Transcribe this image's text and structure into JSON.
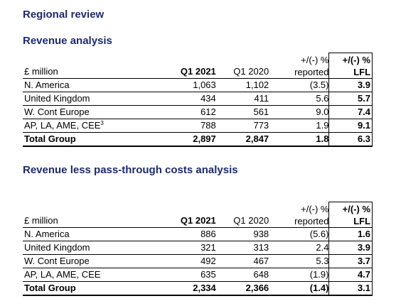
{
  "title": "Regional review",
  "sections": [
    {
      "title": "Revenue analysis",
      "header": {
        "label": "£ million",
        "q1_current": "Q1 2021",
        "q1_prior": "Q1 2020",
        "reported_line1": "+/(-) %",
        "reported_line2": "reported",
        "lfl_line1": "+/(-) %",
        "lfl_line2": "LFL"
      },
      "rows": [
        {
          "label": "N. America",
          "q1_current": "1,063",
          "q1_prior": "1,102",
          "reported": "(3.5)",
          "lfl": "3.9"
        },
        {
          "label": "United Kingdom",
          "q1_current": "434",
          "q1_prior": "411",
          "reported": "5.6",
          "lfl": "5.7"
        },
        {
          "label": "W. Cont Europe",
          "q1_current": "612",
          "q1_prior": "561",
          "reported": "9.0",
          "lfl": "7.4"
        },
        {
          "label": "AP, LA, AME, CEE",
          "label_sup": "3",
          "q1_current": "788",
          "q1_prior": "773",
          "reported": "1.9",
          "lfl": "9.1"
        },
        {
          "label": "Total Group",
          "q1_current": "2,897",
          "q1_prior": "2,847",
          "reported": "1.8",
          "lfl": "6.3"
        }
      ]
    },
    {
      "title": "Revenue less pass-through costs analysis",
      "header": {
        "label": "£ million",
        "q1_current": "Q1 2021",
        "q1_prior": "Q1 2020",
        "reported_line1": "+/(-) %",
        "reported_line2": "reported",
        "lfl_line1": "+/(-) %",
        "lfl_line2": "LFL"
      },
      "rows": [
        {
          "label": "N. America",
          "q1_current": "886",
          "q1_prior": "938",
          "reported": "(5.6)",
          "lfl": "1.6"
        },
        {
          "label": "United Kingdom",
          "q1_current": "321",
          "q1_prior": "313",
          "reported": "2.4",
          "lfl": "3.9"
        },
        {
          "label": "W. Cont Europe",
          "q1_current": "492",
          "q1_prior": "467",
          "reported": "5.3",
          "lfl": "3.7"
        },
        {
          "label": "AP, LA, AME, CEE",
          "q1_current": "635",
          "q1_prior": "648",
          "reported": "(1.9)",
          "lfl": "4.7"
        },
        {
          "label": "Total Group",
          "q1_current": "2,334",
          "q1_prior": "2,366",
          "reported": "(1.4)",
          "lfl": "3.1"
        }
      ]
    }
  ]
}
